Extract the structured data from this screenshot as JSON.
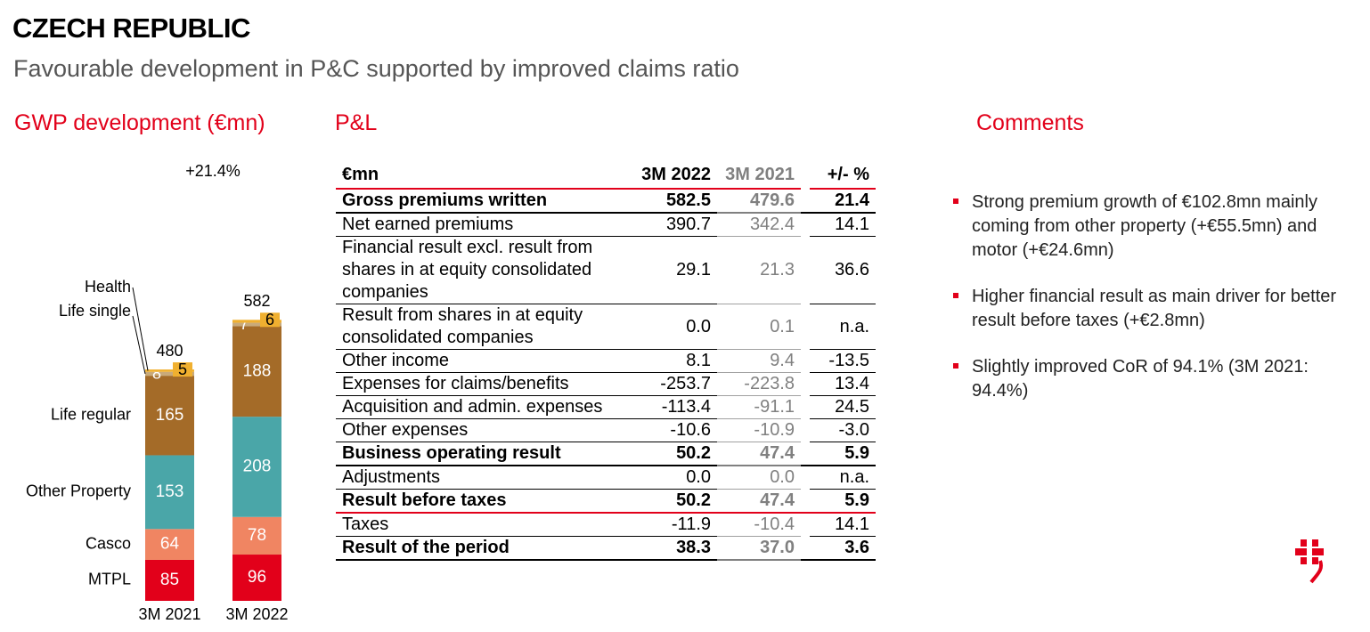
{
  "page": {
    "title": "CZECH REPUBLIC",
    "subtitle": "Favourable development in P&C supported by improved claims ratio"
  },
  "sections": {
    "gwp": "GWP development (€mn)",
    "pl": "P&L",
    "comments": "Comments"
  },
  "colors": {
    "accent": "#e2001a",
    "MTPL": "#e2001a",
    "Casco": "#f08562",
    "Other Property": "#4aa6a8",
    "Life regular": "#a46b28",
    "Life single": "#c9aa7a",
    "Health": "#f0b030"
  },
  "chart_data": {
    "type": "bar",
    "stacked": true,
    "title": "GWP development (€mn)",
    "categories": [
      "3M 2021",
      "3M 2022"
    ],
    "series": [
      {
        "name": "MTPL",
        "values": [
          85,
          96
        ]
      },
      {
        "name": "Casco",
        "values": [
          64,
          78
        ]
      },
      {
        "name": "Other Property",
        "values": [
          153,
          208
        ]
      },
      {
        "name": "Life regular",
        "values": [
          165,
          188
        ]
      },
      {
        "name": "Life single",
        "values": [
          8,
          7
        ]
      },
      {
        "name": "Health",
        "values": [
          5,
          6
        ]
      }
    ],
    "totals": [
      480,
      582
    ],
    "growth_label": "+21.4%",
    "legend_placement": "left"
  },
  "pl_table": {
    "headers": [
      "€mn",
      "3M 2022",
      "3M 2021",
      "+/- %"
    ],
    "rows": [
      {
        "label": "Gross premiums written",
        "v2022": "582.5",
        "v2021": "479.6",
        "change": "21.4",
        "style": "bold"
      },
      {
        "label": "Net earned premiums",
        "v2022": "390.7",
        "v2021": "342.4",
        "change": "14.1",
        "style": "normal"
      },
      {
        "label": "Financial result excl. result from shares in at equity consolidated companies",
        "v2022": "29.1",
        "v2021": "21.3",
        "change": "36.6",
        "style": "normal"
      },
      {
        "label": "Result from shares in at equity consolidated companies",
        "v2022": "0.0",
        "v2021": "0.1",
        "change": "n.a.",
        "style": "normal"
      },
      {
        "label": "Other income",
        "v2022": "8.1",
        "v2021": "9.4",
        "change": "-13.5",
        "style": "normal"
      },
      {
        "label": "Expenses for claims/benefits",
        "v2022": "-253.7",
        "v2021": "-223.8",
        "change": "13.4",
        "style": "normal"
      },
      {
        "label": "Acquisition and admin. expenses",
        "v2022": "-113.4",
        "v2021": "-91.1",
        "change": "24.5",
        "style": "normal"
      },
      {
        "label": "Other expenses",
        "v2022": "-10.6",
        "v2021": "-10.9",
        "change": "-3.0",
        "style": "normal"
      },
      {
        "label": "Business operating result",
        "v2022": "50.2",
        "v2021": "47.4",
        "change": "5.9",
        "style": "bold"
      },
      {
        "label": "Adjustments",
        "v2022": "0.0",
        "v2021": "0.0",
        "change": "n.a.",
        "style": "normal"
      },
      {
        "label": "Result before taxes",
        "v2022": "50.2",
        "v2021": "47.4",
        "change": "5.9",
        "style": "bold-red"
      },
      {
        "label": "Taxes",
        "v2022": "-11.9",
        "v2021": "-10.4",
        "change": "14.1",
        "style": "normal"
      },
      {
        "label": "Result of the period",
        "v2022": "38.3",
        "v2021": "37.0",
        "change": "3.6",
        "style": "bold"
      }
    ]
  },
  "comments": [
    "Strong premium growth of €102.8mn mainly coming from other property (+€55.5mn) and motor (+€24.6mn)",
    "Higher financial result as main driver for better result before taxes (+€2.8mn)",
    "Slightly improved CoR of 94.1% (3M 2021: 94.4%)"
  ],
  "logo": {
    "icon": "vig-logo-icon"
  }
}
